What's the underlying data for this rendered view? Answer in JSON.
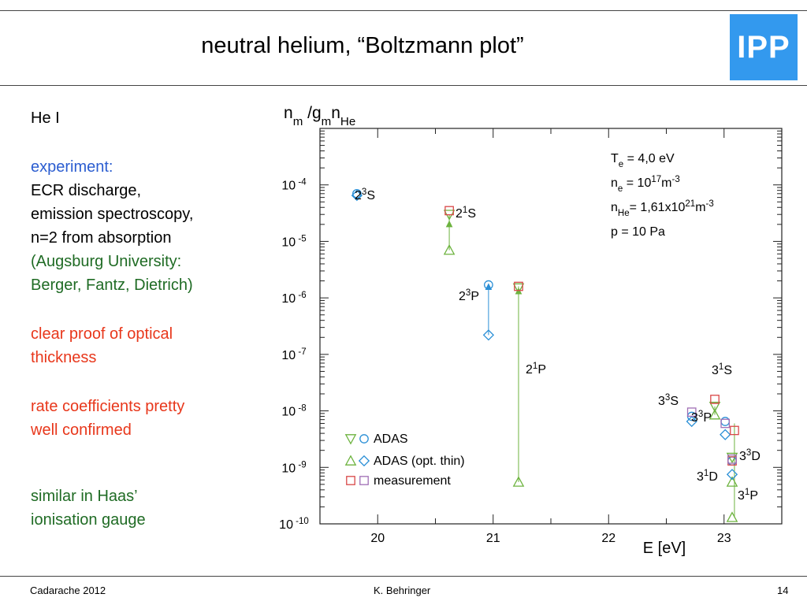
{
  "slide": {
    "title": "neutral helium, “Boltzmann plot”",
    "logo_text": "IPP",
    "logo_color": "#3399ee"
  },
  "left_panel": {
    "heading": "He I",
    "experiment_label": "experiment:",
    "experiment_lines": [
      "ECR discharge,",
      "emission spectroscopy,",
      "n=2 from absorption"
    ],
    "affiliation_lines": [
      "(Augsburg University:",
      "Berger, Fantz, Dietrich)"
    ],
    "proof_lines": [
      "clear proof of optical",
      "thickness"
    ],
    "rate_lines": [
      "rate coefficients pretty",
      "well confirmed"
    ],
    "haas_lines": [
      "similar in Haas’",
      "ionisation gauge"
    ],
    "colors": {
      "blue": "#2b5dd0",
      "green": "#1f6b24",
      "red": "#e8371b"
    }
  },
  "footer": {
    "left": "Cadarache 2012",
    "center": "K. Behringer",
    "page": "14"
  },
  "chart_data": {
    "type": "scatter",
    "ylabel": {
      "base": "n",
      "sub1": "m",
      "mid": " /g",
      "sub2": "m",
      "base2": "n",
      "sub3": "He"
    },
    "xlabel": "E [eV]",
    "x_ticks": [
      "20",
      "21",
      "22",
      "23"
    ],
    "xlim": [
      19.5,
      23.5
    ],
    "y_scale": "log",
    "ylim": [
      1e-10,
      0.001
    ],
    "y_ticks": [
      {
        "base": "10",
        "exp": "-4",
        "value": 0.0001
      },
      {
        "base": "10",
        "exp": "-5",
        "value": 1e-05
      },
      {
        "base": "10",
        "exp": "-6",
        "value": 1e-06
      },
      {
        "base": "10",
        "exp": "-7",
        "value": 1e-07
      },
      {
        "base": "10",
        "exp": "-8",
        "value": 1e-08
      },
      {
        "base": "10",
        "exp": "-9",
        "value": 1e-09
      },
      {
        "base": "10",
        "exp": "-10",
        "value": 1e-10
      }
    ],
    "conditions": [
      {
        "pre": "T",
        "sub": "e",
        "mid": " = 4,0 eV",
        "sup": "",
        "post": ""
      },
      {
        "pre": "n",
        "sub": "e",
        "mid": " = 10",
        "sup": "17",
        "post": "m",
        "sup2": "-3"
      },
      {
        "pre": "n",
        "sub": "He",
        "mid": "= 1,61x10",
        "sup": "21",
        "post": "m",
        "sup2": "-3"
      },
      {
        "pre": "p = 10 Pa",
        "sub": "",
        "mid": "",
        "sup": "",
        "post": ""
      }
    ],
    "legend": [
      {
        "label": "ADAS",
        "markers": [
          "tri-down",
          "circle"
        ]
      },
      {
        "label": "ADAS (opt. thin)",
        "markers": [
          "tri-up",
          "diamond"
        ]
      },
      {
        "label": "measurement",
        "markers": [
          "square",
          "square"
        ]
      }
    ],
    "legend_marker_colors": [
      "#6db33f",
      "#2a8fd6",
      "#d94848",
      "#a06fb5"
    ],
    "level_labels": [
      {
        "n": "2",
        "sup": "3",
        "L": "S"
      },
      {
        "n": "2",
        "sup": "1",
        "L": "S"
      },
      {
        "n": "2",
        "sup": "3",
        "L": "P"
      },
      {
        "n": "2",
        "sup": "1",
        "L": "P"
      },
      {
        "n": "3",
        "sup": "1",
        "L": "S"
      },
      {
        "n": "3",
        "sup": "3",
        "L": "S"
      },
      {
        "n": "3",
        "sup": "3",
        "L": "P"
      },
      {
        "n": "3",
        "sup": "3",
        "L": "D"
      },
      {
        "n": "3",
        "sup": "1",
        "L": "D"
      },
      {
        "n": "3",
        "sup": "1",
        "L": "P"
      }
    ],
    "series": [
      {
        "name": "ADAS",
        "color": "#6db33f",
        "marker": "tri-down",
        "points": [
          [
            20.62,
            3e-05
          ],
          [
            21.22,
            1.5e-06
          ],
          [
            22.92,
            1.2e-08
          ],
          [
            23.07,
            1.5e-09
          ]
        ]
      },
      {
        "name": "ADAS",
        "color": "#2a8fd6",
        "marker": "circle",
        "points": [
          [
            19.82,
            7e-05
          ],
          [
            20.96,
            1.7e-06
          ],
          [
            22.72,
            8e-09
          ],
          [
            23.01,
            6.5e-09
          ],
          [
            23.07,
            1.3e-09
          ]
        ]
      },
      {
        "name": "ADAS (opt. thin)",
        "color": "#6db33f",
        "marker": "tri-up",
        "points": [
          [
            20.62,
            7e-06
          ],
          [
            21.22,
            5.5e-10
          ],
          [
            22.92,
            8.5e-09
          ],
          [
            23.07,
            5.5e-10
          ],
          [
            23.07,
            1.3e-10
          ]
        ]
      },
      {
        "name": "ADAS (opt. thin)",
        "color": "#2a8fd6",
        "marker": "diamond",
        "points": [
          [
            19.82,
            6.5e-05
          ],
          [
            20.96,
            2.2e-07
          ],
          [
            22.72,
            6.5e-09
          ],
          [
            23.01,
            3.8e-09
          ],
          [
            23.07,
            7.5e-10
          ]
        ]
      },
      {
        "name": "measurement",
        "color": "#d94848",
        "marker": "square",
        "points": [
          [
            20.62,
            3.5e-05
          ],
          [
            21.22,
            1.6e-06
          ],
          [
            22.92,
            1.6e-08
          ],
          [
            23.09,
            4.5e-09
          ],
          [
            23.07,
            1.3e-09
          ]
        ]
      },
      {
        "name": "measurement",
        "color": "#a06fb5",
        "marker": "square",
        "points": [
          [
            22.72,
            9.5e-09
          ],
          [
            23.01,
            6e-09
          ],
          [
            23.07,
            1.4e-09
          ]
        ]
      }
    ],
    "error_bars": [
      {
        "x": 20.62,
        "y_top": 3e-05,
        "y_bottom": 7e-06,
        "color": "#6db33f",
        "mid_marker": 2e-05
      },
      {
        "x": 20.96,
        "y_top": 1.7e-06,
        "y_bottom": 2.2e-07,
        "color": "#2a8fd6",
        "mid_marker": 1.55e-06
      },
      {
        "x": 21.22,
        "y_top": 1.6e-06,
        "y_bottom": 5.5e-10,
        "color": "#6db33f",
        "mid_marker": 1.3e-06
      },
      {
        "x": 22.92,
        "y_top": 1.2e-08,
        "y_bottom": 8.5e-09,
        "color": "#6db33f",
        "mid_marker": null
      },
      {
        "x": 23.09,
        "y_top": 6e-09,
        "y_bottom": 1.3e-10,
        "color": "#6db33f",
        "mid_marker": null
      }
    ]
  }
}
